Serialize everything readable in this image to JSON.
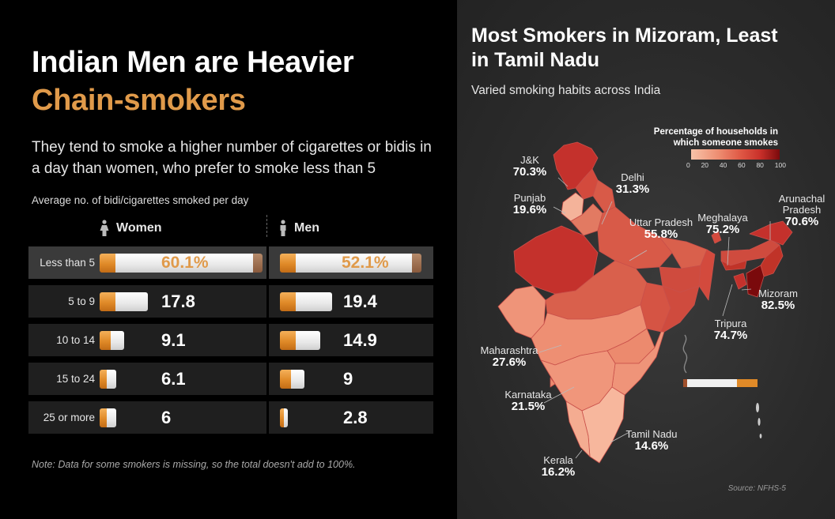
{
  "left": {
    "title_line1": "Indian Men are Heavier",
    "title_line2": "Chain-smokers",
    "subtitle": "They tend to smoke a higher number of cigarettes or bidis in a day than women, who prefer to smoke less than 5",
    "axis_label": "Average no. of bidi/cigarettes smoked per day",
    "women_header": "Women",
    "men_header": "Men",
    "note": "Note: Data for some smokers is missing, so the total doesn't add to 100%.",
    "colors": {
      "accent": "#e09a4a",
      "row_bg": "#1f1f1f",
      "row_highlight": "#3a3a3a"
    }
  },
  "right": {
    "title": "Most Smokers in Mizoram, Least in Tamil Nadu",
    "subtitle": "Varied smoking habits across India",
    "legend_title_line1": "Percentage of households in",
    "legend_title_line2": "which someone smokes",
    "legend_ticks": [
      "0",
      "20",
      "40",
      "60",
      "80",
      "100"
    ],
    "source": "Source: NFHS-5",
    "states": [
      {
        "name": "J&K",
        "value": "70.3%"
      },
      {
        "name": "Punjab",
        "value": "19.6%"
      },
      {
        "name": "Delhi",
        "value": "31.3%"
      },
      {
        "name": "Uttar Pradesh",
        "value": "55.8%"
      },
      {
        "name": "Meghalaya",
        "value": "75.2%"
      },
      {
        "name": "Arunachal Pradesh",
        "value": "70.6%"
      },
      {
        "name": "Mizoram",
        "value": "82.5%"
      },
      {
        "name": "Tripura",
        "value": "74.7%"
      },
      {
        "name": "Maharashtra",
        "value": "27.6%"
      },
      {
        "name": "Karnataka",
        "value": "21.5%"
      },
      {
        "name": "Tamil Nadu",
        "value": "14.6%"
      },
      {
        "name": "Kerala",
        "value": "16.2%"
      }
    ],
    "colors": {
      "low": "#f8c3a9",
      "mid": "#e05a46",
      "high": "#7a0a0c"
    }
  },
  "chart_data": [
    {
      "type": "bar",
      "title": "Indian Men are Heavier Chain-smokers",
      "ylabel": "Average no. of bidi/cigarettes smoked per day",
      "categories": [
        "Less than 5",
        "5 to 9",
        "10 to 14",
        "15 to 24",
        "25 or more"
      ],
      "series": [
        {
          "name": "Women",
          "values": [
            60.1,
            17.8,
            9.1,
            6.1,
            6
          ],
          "labels": [
            "60.1%",
            "17.8",
            "9.1",
            "6.1",
            "6"
          ]
        },
        {
          "name": "Men",
          "values": [
            52.1,
            19.4,
            14.9,
            9,
            2.8
          ],
          "labels": [
            "52.1%",
            "19.4",
            "14.9",
            "9",
            "2.8"
          ]
        }
      ]
    },
    {
      "type": "heatmap",
      "title": "Most Smokers in Mizoram, Least in Tamil Nadu",
      "legend": "Percentage of households in which someone smokes",
      "range": [
        0,
        100
      ],
      "regions": [
        "J&K",
        "Punjab",
        "Delhi",
        "Uttar Pradesh",
        "Meghalaya",
        "Arunachal Pradesh",
        "Mizoram",
        "Tripura",
        "Maharashtra",
        "Karnataka",
        "Tamil Nadu",
        "Kerala"
      ],
      "values": [
        70.3,
        19.6,
        31.3,
        55.8,
        75.2,
        70.6,
        82.5,
        74.7,
        27.6,
        21.5,
        14.6,
        16.2
      ]
    }
  ]
}
